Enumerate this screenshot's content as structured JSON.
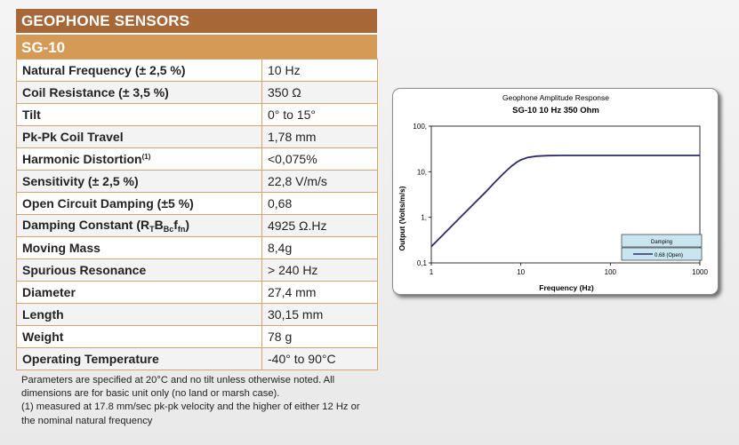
{
  "header": {
    "title": "GEOPHONE SENSORS",
    "model": "SG-10"
  },
  "specs": [
    {
      "label": "Natural Frequency (± 2,5 %)",
      "value": "10 Hz"
    },
    {
      "label": "Coil Resistance (± 3,5 %)",
      "value": "350 Ω"
    },
    {
      "label": "Tilt",
      "value": "0° to 15°"
    },
    {
      "label": "Pk-Pk Coil Travel",
      "value": "1,78 mm"
    },
    {
      "label": "Harmonic Distortion",
      "label_sup": "(1)",
      "value": "<0,075%"
    },
    {
      "label": "Sensitivity (± 2,5 %)",
      "value": "22,8 V/m/s"
    },
    {
      "label": "Open Circuit Damping (±5 %)",
      "value": "0,68"
    },
    {
      "label": "Damping Constant (R",
      "label_parts": [
        "T",
        "B",
        "c",
        "f",
        "n"
      ],
      "value": "4925 Ω.Hz"
    },
    {
      "label": "Moving Mass",
      "value": "8,4g"
    },
    {
      "label": "Spurious Resonance",
      "value": "> 240 Hz"
    },
    {
      "label": "Diameter",
      "value": "27,4 mm"
    },
    {
      "label": "Length",
      "value": "30,15 mm"
    },
    {
      "label": "Weight",
      "value": "78 g"
    },
    {
      "label": "Operating Temperature",
      "value": "-40° to 90°C"
    }
  ],
  "notes": {
    "line1": "Parameters are specified at 20°C and no tilt unless otherwise noted. All dimensions are for basic unit only (no land or marsh case).",
    "line2": "(1) measured at 17.8 mm/sec pk-pk velocity and the higher of either 12 Hz or the nominal natural frequency"
  },
  "chart_data": {
    "type": "line",
    "title": "Geophone Amplitude Response",
    "subtitle": "SG-10  10 Hz  350 Ohm",
    "xlabel": "Frequency (Hz)",
    "ylabel": "Output (Volts/m/s)",
    "xscale": "log",
    "yscale": "log",
    "xlim": [
      1,
      1000
    ],
    "ylim": [
      0.1,
      100
    ],
    "x_ticks": [
      "1",
      "10",
      "100",
      "1000"
    ],
    "y_ticks": [
      "0,1",
      "1,",
      "10,",
      "100,"
    ],
    "grid": false,
    "legend_title": "Damping",
    "legend_placement": "bottom-right",
    "series": [
      {
        "name": "0.68 (Open)",
        "color": "#2e2a6e",
        "x": [
          1,
          1.5,
          2,
          3,
          4,
          5,
          6,
          7,
          8,
          9,
          10,
          12,
          15,
          20,
          30,
          50,
          100,
          200,
          500,
          1000
        ],
        "y": [
          0.228,
          0.51,
          0.9,
          2.0,
          3.5,
          5.6,
          8.0,
          10.8,
          13.6,
          16.2,
          18.2,
          20.6,
          22.0,
          22.6,
          22.8,
          22.8,
          22.8,
          22.8,
          22.8,
          22.8
        ]
      }
    ]
  }
}
